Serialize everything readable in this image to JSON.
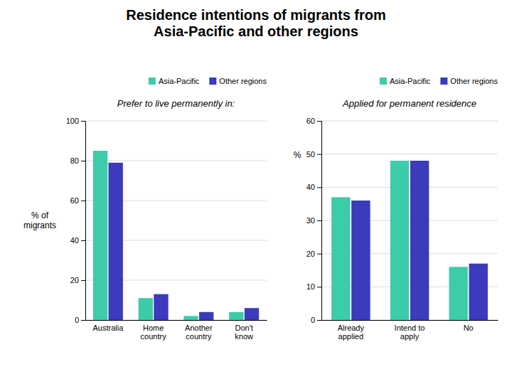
{
  "title": "Residence intentions of migrants from\nAsia-Pacific and other regions",
  "chart_data": [
    {
      "type": "bar",
      "title": "Prefer to live permanently in:",
      "ylabel": "% of\nmigrants",
      "categories": [
        "Australia",
        "Home\ncountry",
        "Another\ncountry",
        "Don't\nknow"
      ],
      "series": [
        {
          "name": "Asia-Pacific",
          "color": "#3DCCAA",
          "values": [
            85,
            11,
            2,
            4
          ]
        },
        {
          "name": "Other regions",
          "color": "#3B3BBB",
          "values": [
            79,
            13,
            4,
            6
          ]
        }
      ],
      "ylim": [
        0,
        100
      ],
      "yticks": [
        0,
        20,
        40,
        60,
        80,
        100
      ],
      "grid": true,
      "legend": "upper right"
    },
    {
      "type": "bar",
      "title": "Applied for permanent residence",
      "ylabel": "%",
      "categories": [
        "Already\napplied",
        "Intend to\napply",
        "No"
      ],
      "series": [
        {
          "name": "Asia-Pacific",
          "color": "#3DCCAA",
          "values": [
            37,
            48,
            16
          ]
        },
        {
          "name": "Other regions",
          "color": "#3B3BBB",
          "values": [
            36,
            48,
            17
          ]
        }
      ],
      "ylim": [
        0,
        60
      ],
      "yticks": [
        0,
        10,
        20,
        30,
        40,
        50,
        60
      ],
      "grid": true,
      "legend": "upper right"
    }
  ]
}
